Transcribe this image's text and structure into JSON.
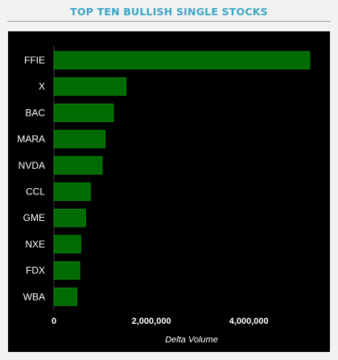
{
  "widget": {
    "title": "TOP TEN BULLISH SINGLE STOCKS"
  },
  "colors": {
    "title": "#3aa6c4",
    "panel_background": "#000000",
    "bar_fill": "#006b00",
    "bar_stroke": "#0b8f0b",
    "text": "#ffffff"
  },
  "chart_data": {
    "type": "bar",
    "orientation": "horizontal",
    "title": "TOP TEN BULLISH SINGLE STOCKS",
    "categories": [
      "FFIE",
      "X",
      "BAC",
      "MARA",
      "NVDA",
      "CCL",
      "GME",
      "NXE",
      "FDX",
      "WBA"
    ],
    "values": [
      5250000,
      1480000,
      1220000,
      1050000,
      990000,
      750000,
      650000,
      550000,
      530000,
      470000
    ],
    "xlabel": "Delta Volume",
    "ylabel": "",
    "xlim": [
      0,
      5500000
    ],
    "x_ticks": [
      0,
      2000000,
      4000000
    ],
    "x_tick_labels": [
      "0",
      "2,000,000",
      "4,000,000"
    ],
    "grid": false,
    "legend": "none"
  }
}
